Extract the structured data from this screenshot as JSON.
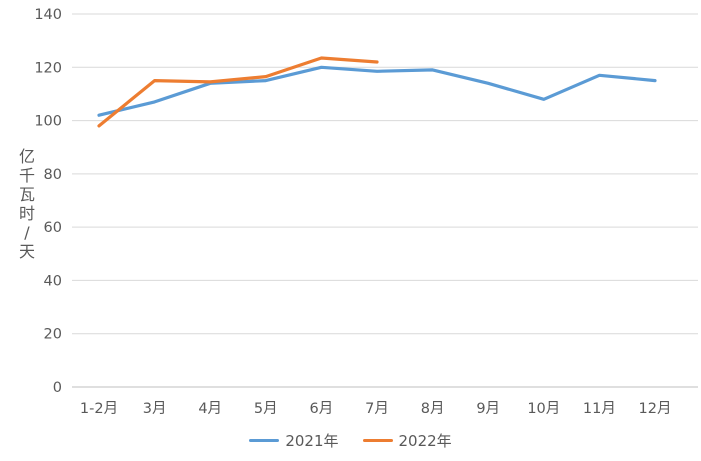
{
  "chart_data": {
    "type": "line",
    "title": "",
    "categories": [
      "1-2月",
      "3月",
      "4月",
      "5月",
      "6月",
      "7月",
      "8月",
      "9月",
      "10月",
      "11月",
      "12月"
    ],
    "series": [
      {
        "name": "2021年",
        "color": "#5B9BD5",
        "values": [
          102,
          107,
          114,
          115,
          120,
          118.5,
          119,
          114,
          108,
          117,
          115
        ]
      },
      {
        "name": "2022年",
        "color": "#ED7D31",
        "values": [
          98,
          115,
          114.5,
          116.5,
          123.5,
          122,
          null,
          null,
          null,
          null,
          null
        ]
      }
    ],
    "xlabel": "",
    "ylabel": "亿千瓦时/天",
    "ylim": [
      0,
      140
    ],
    "yticks": [
      0,
      20,
      40,
      60,
      80,
      100,
      120,
      140
    ],
    "grid": true,
    "legend_position": "bottom",
    "grid_color": "#D9D9D9",
    "axis_line_color": "#BFBFBF",
    "axis_text_color": "#595959",
    "background": "#FFFFFF"
  }
}
